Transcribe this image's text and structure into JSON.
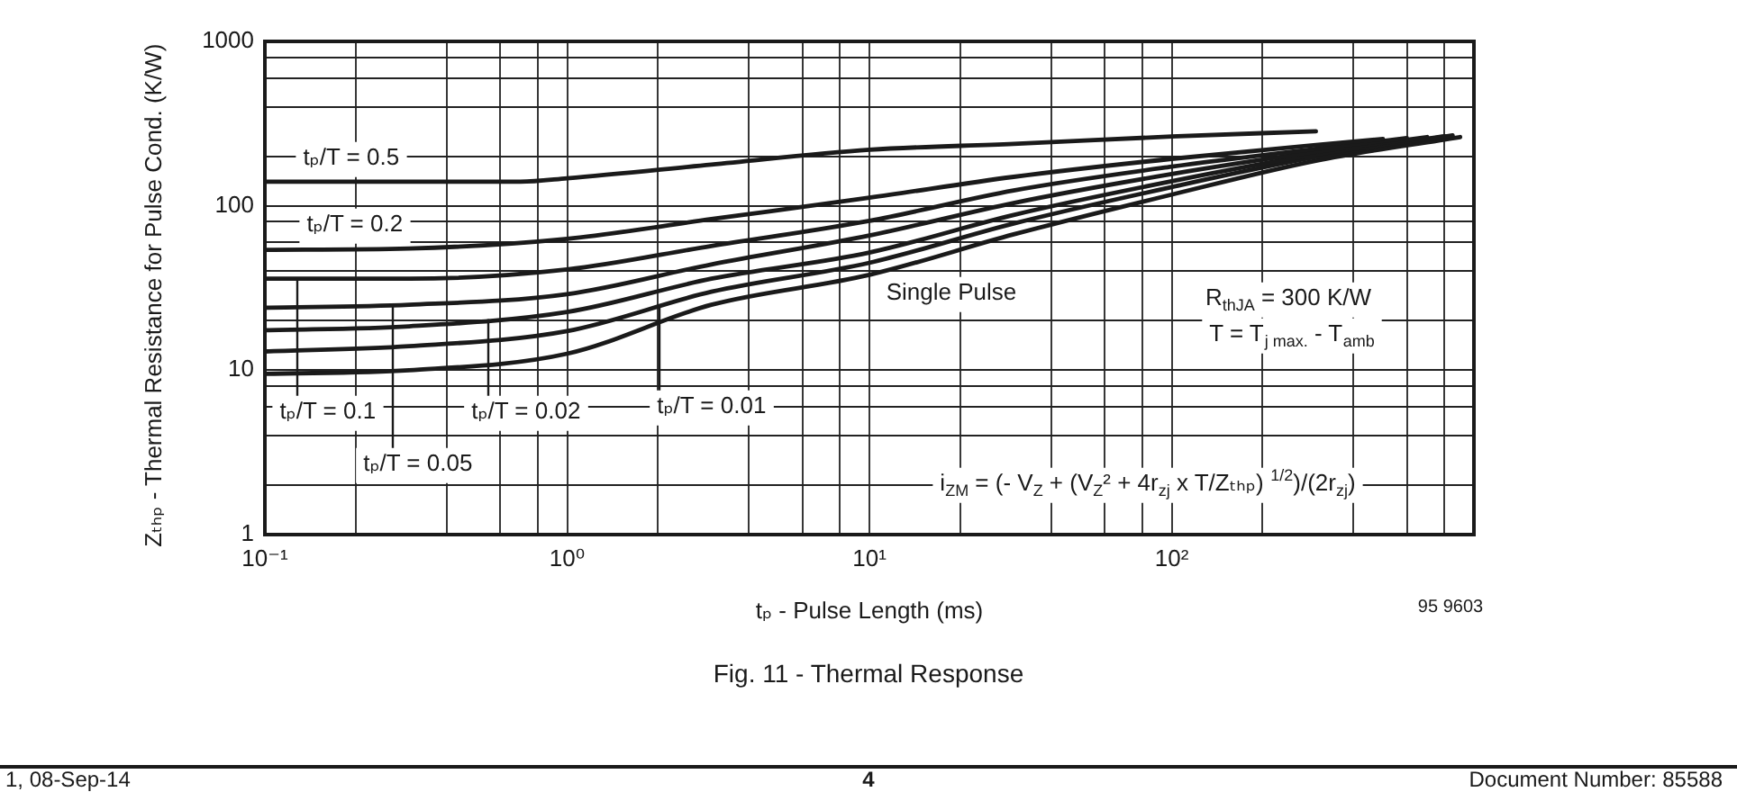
{
  "chart_data": {
    "type": "line",
    "title": "Fig. 11 - Thermal Response",
    "xlabel": "tₚ - Pulse Length (ms)",
    "ylabel": "Zₜₕₚ - Thermal Resistance for Pulse Cond. (K/W)",
    "log": "xy",
    "xlim": [
      0.1,
      1000
    ],
    "ylim": [
      1,
      1000
    ],
    "xticks": [
      {
        "value": 0.1,
        "label": "10⁻¹"
      },
      {
        "value": 0.2,
        "label": null
      },
      {
        "value": 0.4,
        "label": null
      },
      {
        "value": 0.6,
        "label": null
      },
      {
        "value": 0.8,
        "label": null
      },
      {
        "value": 1,
        "label": "10⁰"
      },
      {
        "value": 2,
        "label": null
      },
      {
        "value": 4,
        "label": null
      },
      {
        "value": 6,
        "label": null
      },
      {
        "value": 8,
        "label": null
      },
      {
        "value": 10,
        "label": "10¹"
      },
      {
        "value": 20,
        "label": null
      },
      {
        "value": 40,
        "label": null
      },
      {
        "value": 60,
        "label": null
      },
      {
        "value": 80,
        "label": null
      },
      {
        "value": 100,
        "label": "10²"
      },
      {
        "value": 200,
        "label": null
      },
      {
        "value": 400,
        "label": null
      },
      {
        "value": 600,
        "label": null
      },
      {
        "value": 800,
        "label": null
      },
      {
        "value": 1000,
        "label": null
      }
    ],
    "yticks": [
      1,
      {
        "value": 2,
        "label": null
      },
      {
        "value": 4,
        "label": null
      },
      {
        "value": 6,
        "label": null
      },
      {
        "value": 8,
        "label": null
      },
      10,
      {
        "value": 20,
        "label": null
      },
      {
        "value": 40,
        "label": null
      },
      {
        "value": 60,
        "label": null
      },
      {
        "value": 80,
        "label": null
      },
      100,
      {
        "value": 200,
        "label": null
      },
      {
        "value": 400,
        "label": null
      },
      {
        "value": 600,
        "label": null
      },
      {
        "value": 800,
        "label": null
      },
      1000
    ],
    "grid": true,
    "legend": false,
    "marker": "none",
    "line_style": "solid",
    "series": [
      {
        "name": "tₚ/T = 0.5",
        "color": "#1a1a1a",
        "x": [
          0.1,
          0.3,
          0.7,
          1,
          3,
          10,
          30,
          100,
          300
        ],
        "values": [
          140,
          140,
          140,
          147,
          178,
          219,
          238,
          264,
          284
        ]
      },
      {
        "name": "tₚ/T = 0.2",
        "color": "#1a1a1a",
        "x": [
          0.1,
          0.3,
          1,
          3,
          10,
          30,
          100,
          300,
          500
        ],
        "values": [
          54,
          55,
          63,
          83,
          112,
          150,
          193,
          234,
          255
        ]
      },
      {
        "name": "tₚ/T = 0.1",
        "color": "#1a1a1a",
        "x": [
          0.1,
          0.3,
          1,
          3,
          10,
          30,
          100,
          300,
          600
        ],
        "values": [
          36,
          36,
          41,
          57,
          81,
          124,
          173,
          222,
          258
        ]
      },
      {
        "name": "tₚ/T = 0.05",
        "color": "#1a1a1a",
        "x": [
          0.1,
          0.3,
          1,
          3,
          10,
          30,
          100,
          300,
          700
        ],
        "values": [
          24,
          25,
          29,
          44,
          66,
          104,
          156,
          213,
          262
        ]
      },
      {
        "name": "tₚ/T = 0.02",
        "color": "#1a1a1a",
        "x": [
          0.1,
          0.3,
          1,
          3,
          10,
          30,
          100,
          300,
          800
        ],
        "values": [
          17.5,
          18.5,
          22.6,
          36,
          52,
          88,
          141,
          205,
          265
        ]
      },
      {
        "name": "tₚ/T = 0.01",
        "color": "#1a1a1a",
        "x": [
          0.1,
          0.3,
          1,
          3,
          10,
          30,
          100,
          300,
          850
        ],
        "values": [
          13,
          14,
          17.3,
          30,
          45,
          78,
          130,
          198,
          268
        ]
      },
      {
        "name": "Single Pulse",
        "color": "#1a1a1a",
        "x": [
          0.1,
          0.3,
          1,
          3,
          10,
          30,
          100,
          300,
          900
        ],
        "values": [
          9.5,
          10,
          12.6,
          25,
          38,
          67,
          117,
          188,
          262
        ]
      }
    ],
    "annotations": [
      "R$_{thJA}$ = 300 K/W",
      "T = T$_{j max.}$ - T$_{amb}$",
      "i$_{ZM}$ = (- V$_{Z}$ + (V$_{Z}$² + 4r$_{zj}$ x T/Zₜₕₚ) $^{1/2}$)/(2r$_{zj}$)",
      "95 9603",
      "1, 08-Sep-14",
      "4",
      "Document Number: 85588"
    ]
  }
}
